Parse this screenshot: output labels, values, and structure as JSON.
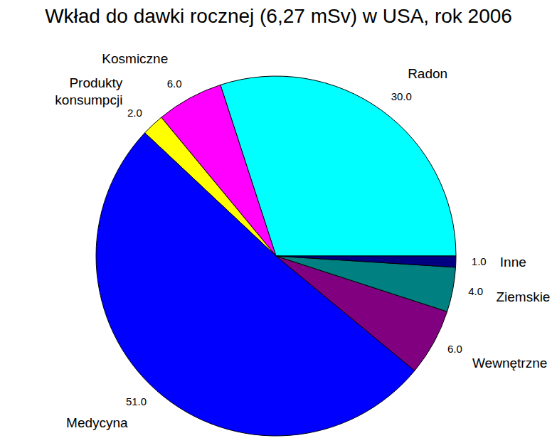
{
  "chart_data": {
    "type": "pie",
    "title": "Wkład do dawki rocznej (6,27 mSv) w USA, rok 2006",
    "categories": [
      "Radon",
      "Kosmiczne",
      "Produkty konsumpcji",
      "Medycyna",
      "Wewnętrzne",
      "Ziemskie",
      "Inne"
    ],
    "values": [
      30,
      6,
      2,
      51,
      6,
      4,
      1
    ],
    "value_labels": [
      "30.0",
      "6.0",
      "2.0",
      "51.0",
      "6.0",
      "4.0",
      "1.0"
    ],
    "colors": [
      "#00ffff",
      "#ff00ff",
      "#ffff00",
      "#0000ff",
      "#800080",
      "#008080",
      "#000080"
    ],
    "data_labels": true
  }
}
